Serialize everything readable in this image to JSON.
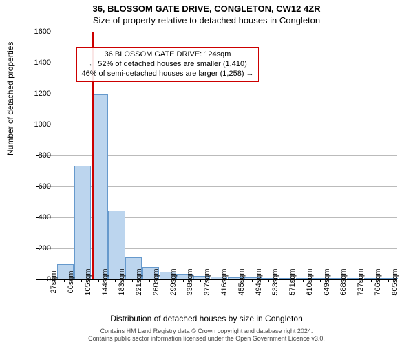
{
  "title_main": "36, BLOSSOM GATE DRIVE, CONGLETON, CW12 4ZR",
  "title_sub": "Size of property relative to detached houses in Congleton",
  "y_axis": {
    "label": "Number of detached properties",
    "ticks": [
      0,
      200,
      400,
      600,
      800,
      1000,
      1200,
      1400,
      1600
    ],
    "max": 1600
  },
  "x_axis": {
    "label": "Distribution of detached houses by size in Congleton",
    "ticks": [
      "27sqm",
      "66sqm",
      "105sqm",
      "144sqm",
      "183sqm",
      "221sqm",
      "260sqm",
      "299sqm",
      "338sqm",
      "377sqm",
      "416sqm",
      "455sqm",
      "494sqm",
      "533sqm",
      "571sqm",
      "610sqm",
      "649sqm",
      "688sqm",
      "727sqm",
      "766sqm",
      "805sqm"
    ]
  },
  "bars": {
    "count": 21,
    "values": [
      0,
      95,
      730,
      1190,
      440,
      140,
      75,
      45,
      30,
      20,
      15,
      10,
      8,
      6,
      5,
      4,
      3,
      2,
      2,
      1,
      1
    ],
    "fill": "#bcd5ee",
    "stroke": "#6699cc",
    "width_ratio": 0.9
  },
  "marker": {
    "position_bin": 3.1,
    "color": "#cc0000"
  },
  "annotation": {
    "lines": [
      "36 BLOSSOM GATE DRIVE: 124sqm",
      "← 52% of detached houses are smaller (1,410)",
      "46% of semi-detached houses are larger (1,258) →"
    ],
    "border_color": "#cc0000",
    "left_bin": 2.2,
    "top_ratio": 0.065
  },
  "footer": {
    "line1": "Contains HM Land Registry data © Crown copyright and database right 2024.",
    "line2": "Contains public sector information licensed under the Open Government Licence v3.0."
  },
  "colors": {
    "grid": "#bbbbbb",
    "background": "#ffffff"
  }
}
